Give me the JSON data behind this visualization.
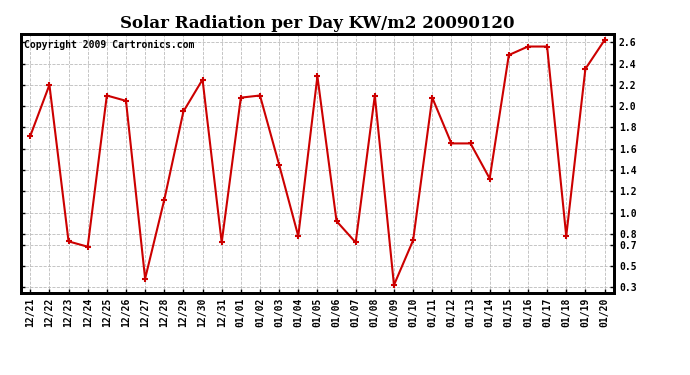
{
  "title": "Solar Radiation per Day KW/m2 20090120",
  "copyright_text": "Copyright 2009 Cartronics.com",
  "dates": [
    "12/21",
    "12/22",
    "12/23",
    "12/24",
    "12/25",
    "12/26",
    "12/27",
    "12/28",
    "12/29",
    "12/30",
    "12/31",
    "01/01",
    "01/02",
    "01/03",
    "01/04",
    "01/05",
    "01/06",
    "01/07",
    "01/08",
    "01/09",
    "01/10",
    "01/11",
    "01/12",
    "01/13",
    "01/14",
    "01/15",
    "01/16",
    "01/17",
    "01/18",
    "01/19",
    "01/20"
  ],
  "values": [
    1.72,
    2.2,
    0.73,
    0.68,
    2.1,
    2.05,
    0.38,
    1.12,
    1.95,
    2.25,
    0.72,
    2.08,
    2.1,
    1.45,
    0.78,
    2.28,
    0.92,
    0.72,
    2.1,
    0.32,
    0.74,
    2.08,
    1.65,
    1.65,
    1.32,
    2.48,
    2.56,
    2.56,
    0.78,
    2.35,
    2.62
  ],
  "yticks": [
    0.3,
    0.5,
    0.7,
    0.8,
    1.0,
    1.2,
    1.4,
    1.6,
    1.8,
    2.0,
    2.2,
    2.4,
    2.6
  ],
  "ymin": 0.25,
  "ymax": 2.68,
  "line_color": "#cc0000",
  "bg_color": "#ffffff",
  "grid_color": "#bbbbbb",
  "title_fontsize": 12,
  "copyright_fontsize": 7,
  "tick_fontsize": 7
}
